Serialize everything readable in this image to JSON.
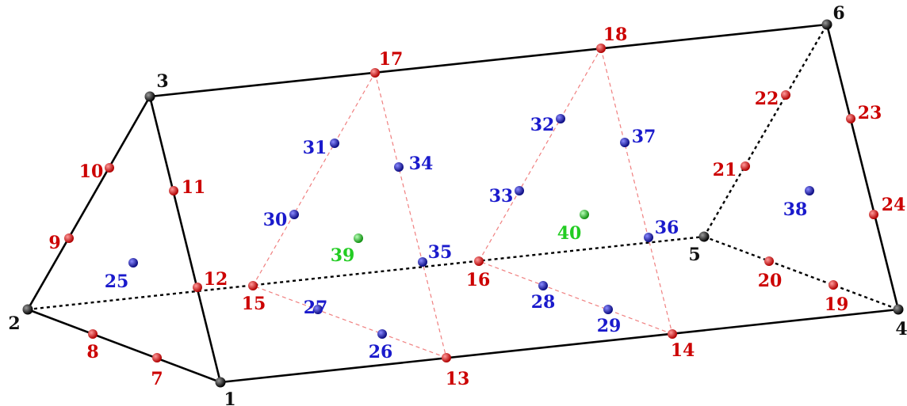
{
  "colors": {
    "corner": "#111111",
    "edge": "#cc0000",
    "face": "#1a1acc",
    "interior": "#22cc22"
  },
  "nodes": [
    {
      "id": "1",
      "kind": "corner"
    },
    {
      "id": "2",
      "kind": "corner"
    },
    {
      "id": "3",
      "kind": "corner"
    },
    {
      "id": "4",
      "kind": "corner"
    },
    {
      "id": "5",
      "kind": "corner"
    },
    {
      "id": "6",
      "kind": "corner"
    },
    {
      "id": "7",
      "kind": "edge"
    },
    {
      "id": "8",
      "kind": "edge"
    },
    {
      "id": "9",
      "kind": "edge"
    },
    {
      "id": "10",
      "kind": "edge"
    },
    {
      "id": "11",
      "kind": "edge"
    },
    {
      "id": "12",
      "kind": "edge"
    },
    {
      "id": "13",
      "kind": "edge"
    },
    {
      "id": "14",
      "kind": "edge"
    },
    {
      "id": "15",
      "kind": "edge"
    },
    {
      "id": "16",
      "kind": "edge"
    },
    {
      "id": "17",
      "kind": "edge"
    },
    {
      "id": "18",
      "kind": "edge"
    },
    {
      "id": "19",
      "kind": "edge"
    },
    {
      "id": "20",
      "kind": "edge"
    },
    {
      "id": "21",
      "kind": "edge"
    },
    {
      "id": "22",
      "kind": "edge"
    },
    {
      "id": "23",
      "kind": "edge"
    },
    {
      "id": "24",
      "kind": "edge"
    },
    {
      "id": "25",
      "kind": "face"
    },
    {
      "id": "26",
      "kind": "face"
    },
    {
      "id": "27",
      "kind": "face"
    },
    {
      "id": "28",
      "kind": "face"
    },
    {
      "id": "29",
      "kind": "face"
    },
    {
      "id": "30",
      "kind": "face"
    },
    {
      "id": "31",
      "kind": "face"
    },
    {
      "id": "32",
      "kind": "face"
    },
    {
      "id": "33",
      "kind": "face"
    },
    {
      "id": "34",
      "kind": "face"
    },
    {
      "id": "35",
      "kind": "face"
    },
    {
      "id": "36",
      "kind": "face"
    },
    {
      "id": "37",
      "kind": "face"
    },
    {
      "id": "38",
      "kind": "face"
    },
    {
      "id": "39",
      "kind": "interior"
    },
    {
      "id": "40",
      "kind": "interior"
    }
  ]
}
